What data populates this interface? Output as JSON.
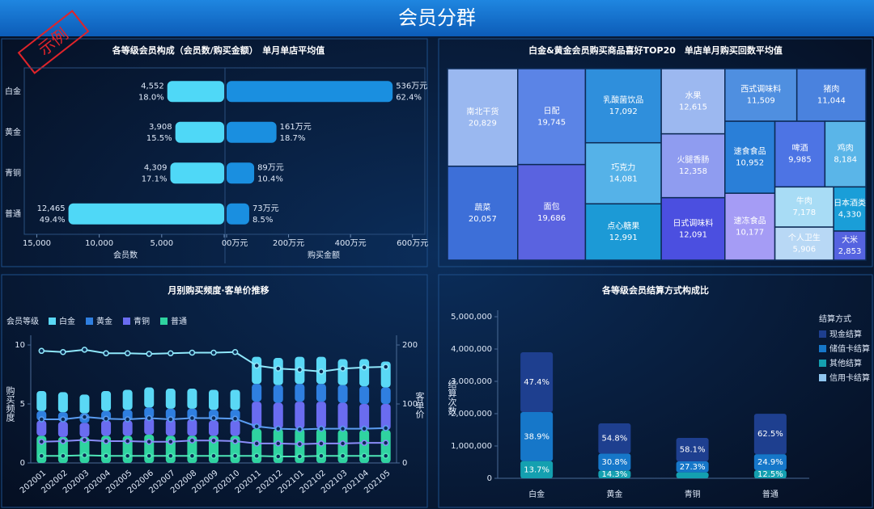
{
  "title": "会员分群",
  "stamp": "示例",
  "chart_data": [
    {
      "type": "butterfly",
      "title": "各等级会员构成（会员数/购买金额）　单月单店平均值",
      "categories": [
        "白金",
        "黄金",
        "青铜",
        "普通"
      ],
      "xlim": [
        0,
        16000
      ],
      "xticks": [
        {
          "value": 15000,
          "label": "15,000"
        },
        {
          "value": 10000,
          "label": "10,000"
        },
        {
          "value": 5000,
          "label": "5,000"
        },
        0
      ],
      "x2lim": [
        0,
        640
      ],
      "x2ticks": [
        {
          "value": 0,
          "label": "0万元"
        },
        {
          "value": 200,
          "label": "200万元"
        },
        {
          "value": 400,
          "label": "400万元"
        },
        {
          "value": 600,
          "label": "600万元"
        }
      ],
      "series": [
        {
          "name": "会员数",
          "color": "#4fd8f7",
          "values": [
            4552,
            3908,
            4309,
            12465
          ],
          "value_labels": [
            "4,552",
            "3,908",
            "4,309",
            "12,465"
          ],
          "share_labels": [
            "18.0%",
            "15.5%",
            "17.1%",
            "49.4%"
          ]
        },
        {
          "name": "购买金额",
          "color": "#1a8fe0",
          "axis": "x2",
          "values": [
            536,
            161,
            89,
            73
          ],
          "value_labels": [
            "536万元",
            "161万元",
            "89万元",
            "73万元"
          ],
          "share_labels": [
            "62.4%",
            "18.7%",
            "10.4%",
            "8.5%"
          ]
        }
      ]
    },
    {
      "type": "treemap",
      "title": "白金&黄金会员购买商品喜好TOP20　单店单月购买回数平均值",
      "categories": [
        "南北干货",
        "蔬菜",
        "日配",
        "面包",
        "乳酸菌饮品",
        "巧克力",
        "点心糖果",
        "水果",
        "火腿香肠",
        "日式调味料",
        "西式调味料",
        "猪肉",
        "速食食品",
        "速冻食品",
        "啤酒",
        "鸡肉",
        "牛肉",
        "个人卫生",
        "日本酒类",
        "大米"
      ],
      "values": [
        20829,
        20057,
        19745,
        19686,
        17092,
        14081,
        12991,
        12615,
        12358,
        12091,
        11509,
        11044,
        10952,
        10177,
        9985,
        8184,
        7178,
        5906,
        4330,
        2853
      ],
      "value_labels": [
        "20,829",
        "20,057",
        "19,745",
        "19,686",
        "17,092",
        "14,081",
        "12,991",
        "12,615",
        "12,358",
        "12,091",
        "11,509",
        "11,044",
        "10,952",
        "10,177",
        "9,985",
        "8,184",
        "7,178",
        "5,906",
        "4,330",
        "2,853"
      ],
      "colors": [
        "#9ab8f0",
        "#3d6fd8",
        "#5b84e6",
        "#5a63e0",
        "#2f8fdc",
        "#55b2e8",
        "#1c9ad6",
        "#9cb8f0",
        "#8f9cf0",
        "#4b4fe0",
        "#4f8fe0",
        "#4a82de",
        "#2a7fd8",
        "#a59cf5",
        "#4d74e4",
        "#5ab5e8",
        "#a8dcf5",
        "#b8d8f5",
        "#1a9ed8",
        "#5563e0"
      ]
    },
    {
      "type": "bar_line",
      "title": "月别购买频度·客单价推移",
      "legend_title": "会员等级",
      "ylabel": "购买频度",
      "y2label": "客单价",
      "categories": [
        "202001",
        "202002",
        "202003",
        "202004",
        "202005",
        "202006",
        "202007",
        "202008",
        "202009",
        "202010",
        "202011",
        "202012",
        "202101",
        "202102",
        "202103",
        "202104",
        "202105"
      ],
      "ylim": [
        0,
        10
      ],
      "yticks": [
        0,
        5,
        10
      ],
      "y2lim": [
        0,
        200
      ],
      "y2ticks": [
        0,
        100,
        200
      ],
      "series": [
        {
          "name": "白金",
          "color": "#5ad8f5",
          "values": [
            1.7,
            1.7,
            1.6,
            1.7,
            1.7,
            1.7,
            1.7,
            1.7,
            1.7,
            1.7,
            2.3,
            2.3,
            2.3,
            2.3,
            2.2,
            2.3,
            2.2
          ]
        },
        {
          "name": "黄金",
          "color": "#2f7fe0",
          "values": [
            0.8,
            0.8,
            0.8,
            0.8,
            0.9,
            0.9,
            0.9,
            0.9,
            0.9,
            0.9,
            1.5,
            1.5,
            1.5,
            1.5,
            1.5,
            1.5,
            1.4
          ]
        },
        {
          "name": "青铜",
          "color": "#6a6cf0",
          "values": [
            1.3,
            1.3,
            1.2,
            1.3,
            1.3,
            1.4,
            1.4,
            1.4,
            1.3,
            1.3,
            2.3,
            2.2,
            2.3,
            2.3,
            2.3,
            2.2,
            2.2
          ]
        },
        {
          "name": "普通",
          "color": "#2fd3a0",
          "values": [
            2.3,
            2.2,
            2.2,
            2.3,
            2.3,
            2.4,
            2.3,
            2.3,
            2.3,
            2.3,
            2.9,
            2.9,
            2.9,
            2.9,
            2.8,
            2.8,
            2.8
          ]
        }
      ],
      "lines": [
        {
          "color": "#8fe8fb",
          "axis": "y2",
          "values": [
            190,
            188,
            192,
            186,
            186,
            185,
            186,
            187,
            187,
            188,
            165,
            160,
            158,
            155,
            160,
            162,
            163
          ]
        },
        {
          "color": "#5a9cf0",
          "axis": "y2",
          "values": [
            74,
            74,
            78,
            75,
            74,
            76,
            74,
            76,
            76,
            75,
            62,
            58,
            57,
            58,
            58,
            58,
            59
          ]
        },
        {
          "color": "#8a8cf8",
          "axis": "y2",
          "values": [
            36,
            37,
            39,
            37,
            37,
            36,
            36,
            38,
            38,
            37,
            33,
            33,
            32,
            33,
            33,
            34,
            34
          ]
        },
        {
          "color": "#4fe6b8",
          "axis": "y2",
          "values": [
            12,
            12,
            13,
            12,
            12,
            12,
            12,
            12,
            12,
            12,
            12,
            11,
            11,
            12,
            12,
            12,
            12
          ]
        }
      ]
    },
    {
      "type": "stacked_bar",
      "title": "各等级会员结算方式构成比",
      "legend_title": "结算方式",
      "ylabel": "结算次数",
      "categories": [
        "白金",
        "黄金",
        "青铜",
        "普通"
      ],
      "ylim": [
        0,
        5000000
      ],
      "yticks": [
        0,
        {
          "value": 1000000,
          "label": "1,000,000"
        },
        {
          "value": 2000000,
          "label": "2,000,000"
        },
        {
          "value": 3000000,
          "label": "3,000,000"
        },
        {
          "value": 4000000,
          "label": "4,000,000"
        },
        {
          "value": 5000000,
          "label": "5,000,000"
        }
      ],
      "series": [
        {
          "name": "现金结算",
          "color": "#1e3f8f",
          "values": [
            1849000,
            932000,
            726000,
            1250000
          ],
          "share_labels": [
            "47.4%",
            "54.8%",
            "58.1%",
            "62.5%"
          ]
        },
        {
          "name": "储值卡结算",
          "color": "#1677c9",
          "values": [
            1517000,
            524000,
            341000,
            498000
          ],
          "share_labels": [
            "38.9%",
            "30.8%",
            "27.3%",
            "24.9%"
          ]
        },
        {
          "name": "其他结算",
          "color": "#14a0b0",
          "values": [
            534000,
            243000,
            183000,
            250000
          ],
          "share_labels": [
            "13.7%",
            "14.3%",
            null,
            "12.5%"
          ]
        },
        {
          "name": "信用卡结算",
          "color": "#8fc6f0",
          "values": [
            0,
            0,
            0,
            0
          ]
        }
      ]
    }
  ]
}
